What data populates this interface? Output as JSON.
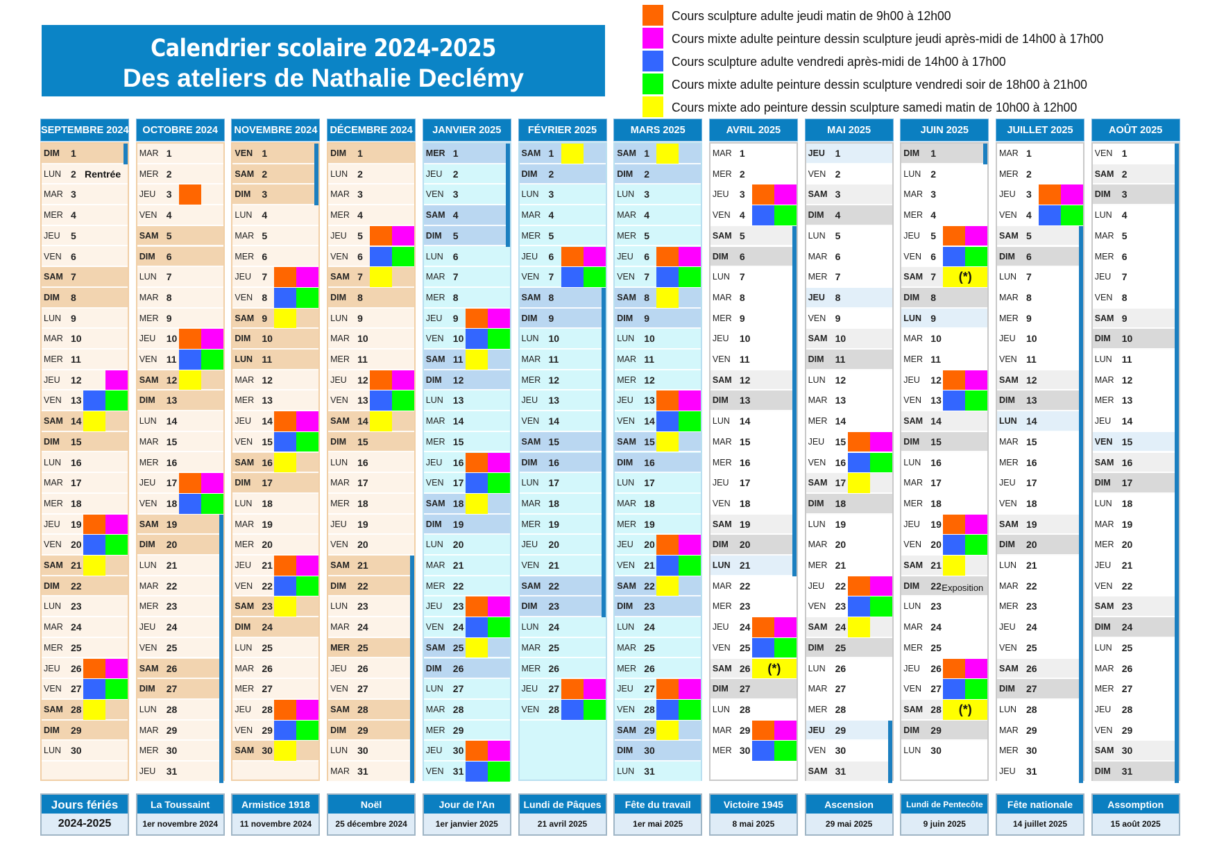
{
  "title": {
    "line1": "Calendrier scolaire 2024-2025",
    "line2": "Des ateliers de Nathalie Declémy"
  },
  "legend": [
    {
      "key": "o",
      "color": "#ff6600",
      "label": "Cours sculpture adulte jeudi matin de 9h00 à 12h00"
    },
    {
      "key": "m",
      "color": "#ff00ff",
      "label": "Cours mixte adulte peinture dessin sculpture jeudi après-midi de 14h00 à 17h00"
    },
    {
      "key": "b",
      "color": "#3366ff",
      "label": "Cours sculpture adulte vendredi après-midi de 14h00 à 17h00"
    },
    {
      "key": "g",
      "color": "#00ff00",
      "label": "Cours mixte adulte peinture dessin sculpture vendredi soir de 18h00 à 21h00"
    },
    {
      "key": "y",
      "color": "#ffff00",
      "label": "Cours mixte ado peinture dessin sculpture samedi matin de 10h00 à 12h00"
    }
  ],
  "star_label": "(*)",
  "themes": {
    "autumn": {
      "weekday": "#fdf3e8",
      "weekend": "#f2d4b0",
      "holiday": "#f2d4b0",
      "border": "#f1cfa6"
    },
    "winter": {
      "weekday": "#d3f7fb",
      "weekend": "#bad7f1",
      "holiday": "#bad7f1",
      "border": "#b9dff0"
    },
    "summer": {
      "weekday": "#ffffff",
      "saturday": "#efefef",
      "weekend": "#d9d9d9",
      "holiday": "#e2eff9",
      "border": "#c9c9c9"
    }
  },
  "months": [
    {
      "name": "SEPTEMBRE 2024",
      "theme": "autumn",
      "vacation": [
        1,
        1
      ],
      "holidays": [],
      "notes": {
        "2": "Rentrée"
      },
      "courses": {
        "12": "m",
        "13": "bg",
        "14": "y",
        "19": "om",
        "20": "bg",
        "21": "y",
        "26": "om",
        "27": "bg",
        "28": "y"
      },
      "days": [
        "DIM 1",
        "LUN 2",
        "MAR 3",
        "MER 4",
        "JEU 5",
        "VEN 6",
        "SAM 7",
        "DIM 8",
        "LUN 9",
        "MAR 10",
        "MER 11",
        "JEU 12",
        "VEN 13",
        "SAM 14",
        "DIM 15",
        "LUN 16",
        "MAR 17",
        "MER 18",
        "JEU 19",
        "VEN 20",
        "SAM 21",
        "DIM 22",
        "LUN 23",
        "MAR 24",
        "MER 25",
        "JEU 26",
        "VEN 27",
        "SAM 28",
        "DIM 29",
        "LUN 30"
      ]
    },
    {
      "name": "OCTOBRE 2024",
      "theme": "autumn",
      "vacation": [
        19,
        31
      ],
      "holidays": [],
      "notes": {},
      "courses": {
        "3": "o",
        "10": "om",
        "11": "bg",
        "12": "y",
        "17": "om",
        "18": "bg"
      },
      "days": [
        "MAR 1",
        "MER 2",
        "JEU 3",
        "VEN 4",
        "SAM 5",
        "DIM 6",
        "LUN 7",
        "MAR 8",
        "MER 9",
        "JEU 10",
        "VEN 11",
        "SAM 12",
        "DIM 13",
        "LUN 14",
        "MAR 15",
        "MER 16",
        "JEU 17",
        "VEN 18",
        "SAM 19",
        "DIM 20",
        "LUN 21",
        "MAR 22",
        "MER 23",
        "JEU 24",
        "VEN 25",
        "SAM 26",
        "DIM 27",
        "LUN 28",
        "MAR 29",
        "MER 30",
        "JEU 31"
      ]
    },
    {
      "name": "NOVEMBRE 2024",
      "theme": "autumn",
      "vacation": [
        1,
        3
      ],
      "holidays": [
        1,
        11
      ],
      "notes": {},
      "courses": {
        "7": "om",
        "8": "bg",
        "9": "y",
        "14": "om",
        "15": "bg",
        "16": "y",
        "21": "om",
        "22": "bg",
        "23": "y",
        "28": "om",
        "29": "bg",
        "30": "y"
      },
      "days": [
        "VEN 1",
        "SAM 2",
        "DIM 3",
        "LUN 4",
        "MAR 5",
        "MER 6",
        "JEU 7",
        "VEN 8",
        "SAM 9",
        "DIM 10",
        "LUN 11",
        "MAR 12",
        "MER 13",
        "JEU 14",
        "VEN 15",
        "SAM 16",
        "DIM 17",
        "LUN 18",
        "MAR 19",
        "MER 20",
        "JEU 21",
        "VEN 22",
        "SAM 23",
        "DIM 24",
        "LUN 25",
        "MAR 26",
        "MER 27",
        "JEU 28",
        "VEN 29",
        "SAM 30"
      ]
    },
    {
      "name": "DÉCEMBRE 2024",
      "theme": "autumn",
      "vacation": [
        21,
        31
      ],
      "holidays": [
        25
      ],
      "notes": {},
      "courses": {
        "5": "om",
        "6": "bg",
        "7": "y",
        "12": "om",
        "13": "bg",
        "14": "y"
      },
      "days": [
        "DIM 1",
        "LUN 2",
        "MAR 3",
        "MER 4",
        "JEU 5",
        "VEN 6",
        "SAM 7",
        "DIM 8",
        "LUN 9",
        "MAR 10",
        "MER 11",
        "JEU 12",
        "VEN 13",
        "SAM 14",
        "DIM 15",
        "LUN 16",
        "MAR 17",
        "MER 18",
        "JEU 19",
        "VEN 20",
        "SAM 21",
        "DIM 22",
        "LUN 23",
        "MAR 24",
        "MER 25",
        "JEU 26",
        "VEN 27",
        "SAM 28",
        "DIM 29",
        "LUN 30",
        "MAR 31"
      ]
    },
    {
      "name": "JANVIER 2025",
      "theme": "winter",
      "vacation": [
        1,
        5
      ],
      "holidays": [
        1
      ],
      "notes": {},
      "courses": {
        "9": "om",
        "10": "bg",
        "11": "y",
        "16": "om",
        "17": "bg",
        "18": "y",
        "23": "om",
        "24": "bg",
        "25": "y",
        "30": "om",
        "31": "bg"
      },
      "days": [
        "MER 1",
        "JEU 2",
        "VEN 3",
        "SAM 4",
        "DIM 5",
        "LUN 6",
        "MAR 7",
        "MER 8",
        "JEU 9",
        "VEN 10",
        "SAM 11",
        "DIM 12",
        "LUN 13",
        "MAR 14",
        "MER 15",
        "JEU 16",
        "VEN 17",
        "SAM 18",
        "DIM 19",
        "LUN 20",
        "MAR 21",
        "MER 22",
        "JEU 23",
        "VEN 24",
        "SAM 25",
        "DIM 26",
        "LUN 27",
        "MAR 28",
        "MER 29",
        "JEU 30",
        "VEN 31"
      ]
    },
    {
      "name": "FÉVRIER 2025",
      "theme": "winter",
      "vacation": [
        8,
        23
      ],
      "holidays": [],
      "notes": {},
      "courses": {
        "1": "y",
        "6": "om",
        "7": "bg",
        "27": "om",
        "28": "bg"
      },
      "days": [
        "SAM 1",
        "DIM 2",
        "LUN 3",
        "MAR 4",
        "MER 5",
        "JEU 6",
        "VEN 7",
        "SAM 8",
        "DIM 9",
        "LUN 10",
        "MAR 11",
        "MER 12",
        "JEU 13",
        "VEN 14",
        "SAM 15",
        "DIM 16",
        "LUN 17",
        "MAR 18",
        "MER 19",
        "JEU 20",
        "VEN 21",
        "SAM 22",
        "DIM 23",
        "LUN 24",
        "MAR 25",
        "MER 26",
        "JEU 27",
        "VEN 28"
      ]
    },
    {
      "name": "MARS 2025",
      "theme": "winter",
      "vacation": null,
      "holidays": [],
      "notes": {},
      "courses": {
        "1": "y",
        "6": "om",
        "7": "bg",
        "8": "y",
        "13": "om",
        "14": "bg",
        "15": "y",
        "20": "om",
        "21": "bg",
        "22": "y",
        "27": "om",
        "28": "bg",
        "29": "y"
      },
      "days": [
        "SAM 1",
        "DIM 2",
        "LUN 3",
        "MAR 4",
        "MER 5",
        "JEU 6",
        "VEN 7",
        "SAM 8",
        "DIM 9",
        "LUN 10",
        "MAR 11",
        "MER 12",
        "JEU 13",
        "VEN 14",
        "SAM 15",
        "DIM 16",
        "LUN 17",
        "MAR 18",
        "MER 19",
        "JEU 20",
        "VEN 21",
        "SAM 22",
        "DIM 23",
        "LUN 24",
        "MAR 25",
        "MER 26",
        "JEU 27",
        "VEN 28",
        "SAM 29",
        "DIM 30",
        "LUN 31"
      ]
    },
    {
      "name": "AVRIL 2025",
      "theme": "summer",
      "vacation": [
        5,
        21
      ],
      "holidays": [
        21
      ],
      "notes": {},
      "courses": {
        "3": "om",
        "4": "bg",
        "24": "om",
        "25": "bg",
        "26": "y*",
        "29": "om",
        "30": "bg"
      },
      "days": [
        "MAR 1",
        "MER 2",
        "JEU 3",
        "VEN 4",
        "SAM 5",
        "DIM 6",
        "LUN 7",
        "MAR 8",
        "MER 9",
        "JEU 10",
        "VEN 11",
        "SAM 12",
        "DIM 13",
        "LUN 14",
        "MAR 15",
        "MER 16",
        "JEU 17",
        "VEN 18",
        "SAM 19",
        "DIM 20",
        "LUN 21",
        "MAR 22",
        "MER 23",
        "JEU 24",
        "VEN 25",
        "SAM 26",
        "DIM 27",
        "LUN 28",
        "MAR 29",
        "MER 30"
      ]
    },
    {
      "name": "MAI 2025",
      "theme": "summer",
      "vacation": [
        29,
        31
      ],
      "holidays": [
        1,
        8,
        29
      ],
      "notes": {},
      "courses": {
        "15": "om",
        "16": "bg",
        "17": "y",
        "22": "om",
        "23": "bg",
        "24": "y"
      },
      "days": [
        "JEU 1",
        "VEN 2",
        "SAM 3",
        "DIM 4",
        "LUN 5",
        "MAR 6",
        "MER 7",
        "JEU 8",
        "VEN 9",
        "SAM 10",
        "DIM 11",
        "LUN 12",
        "MAR 13",
        "MER 14",
        "JEU 15",
        "VEN 16",
        "SAM 17",
        "DIM 18",
        "LUN 19",
        "MAR 20",
        "MER 21",
        "JEU 22",
        "VEN 23",
        "SAM 24",
        "DIM 25",
        "LUN 26",
        "MAR 27",
        "MER 28",
        "JEU 29",
        "VEN 30",
        "SAM 31"
      ]
    },
    {
      "name": "JUIN 2025",
      "theme": "summer",
      "vacation": [
        1,
        1
      ],
      "holidays": [
        9
      ],
      "notes": {
        "22": "Exposition"
      },
      "courses": {
        "5": "om",
        "6": "bg",
        "7": "y*",
        "12": "om",
        "13": "bg",
        "19": "om",
        "20": "bg",
        "21": "y",
        "26": "om",
        "27": "bg",
        "28": "y*"
      },
      "days": [
        "DIM 1",
        "LUN 2",
        "MAR 3",
        "MER 4",
        "JEU 5",
        "VEN 6",
        "SAM 7",
        "DIM 8",
        "LUN 9",
        "MAR 10",
        "MER 11",
        "JEU 12",
        "VEN 13",
        "SAM 14",
        "DIM 15",
        "LUN 16",
        "MAR 17",
        "MER 18",
        "JEU 19",
        "VEN 20",
        "SAM 21",
        "DIM 22",
        "LUN 23",
        "MAR 24",
        "MER 25",
        "JEU 26",
        "VEN 27",
        "SAM 28",
        "DIM 29",
        "LUN 30"
      ]
    },
    {
      "name": "JUILLET 2025",
      "theme": "summer",
      "vacation": [
        5,
        31
      ],
      "holidays": [
        14
      ],
      "notes": {},
      "courses": {
        "3": "om",
        "4": "bg"
      },
      "days": [
        "MAR 1",
        "MER 2",
        "JEU 3",
        "VEN 4",
        "SAM 5",
        "DIM 6",
        "LUN 7",
        "MAR 8",
        "MER 9",
        "JEU 10",
        "VEN 11",
        "SAM 12",
        "DIM 13",
        "LUN 14",
        "MAR 15",
        "MER 16",
        "JEU 17",
        "VEN 18",
        "SAM 19",
        "DIM 20",
        "LUN 21",
        "MAR 22",
        "MER 23",
        "JEU 24",
        "VEN 25",
        "SAM 26",
        "DIM 27",
        "LUN 28",
        "MAR 29",
        "MER 30",
        "JEU 31"
      ]
    },
    {
      "name": "AOÛT 2025",
      "theme": "summer",
      "vacation": [
        1,
        31
      ],
      "holidays": [
        15
      ],
      "notes": {},
      "courses": {},
      "days": [
        "VEN 1",
        "SAM 2",
        "DIM 3",
        "LUN 4",
        "MAR 5",
        "MER 6",
        "JEU 7",
        "VEN 8",
        "SAM 9",
        "DIM 10",
        "LUN 11",
        "MAR 12",
        "MER 13",
        "JEU 14",
        "VEN 15",
        "SAM 16",
        "DIM 17",
        "LUN 18",
        "MAR 19",
        "MER 20",
        "JEU 21",
        "VEN 22",
        "SAM 23",
        "DIM 24",
        "LUN 25",
        "MAR 26",
        "MER 27",
        "JEU 28",
        "VEN 29",
        "SAM 30",
        "DIM 31"
      ]
    }
  ],
  "footer": [
    {
      "name": "Jours fériés",
      "date": "2024-2025"
    },
    {
      "name": "La Toussaint",
      "date": "1er novembre 2024"
    },
    {
      "name": "Armistice 1918",
      "date": "11 novembre 2024"
    },
    {
      "name": "Noël",
      "date": "25 décembre 2024"
    },
    {
      "name": "Jour de l'An",
      "date": "1er janvier 2025"
    },
    {
      "name": "Lundi de Pâques",
      "date": "21 avril 2025"
    },
    {
      "name": "Fête du travail",
      "date": "1er mai 2025"
    },
    {
      "name": "Victoire 1945",
      "date": "8 mai 2025"
    },
    {
      "name": "Ascension",
      "date": "29 mai 2025"
    },
    {
      "name": "Lundi de Pentecôte",
      "date": "9 juin 2025"
    },
    {
      "name": "Fête nationale",
      "date": "14 juillet 2025"
    },
    {
      "name": "Assomption",
      "date": "15 août 2025"
    }
  ]
}
